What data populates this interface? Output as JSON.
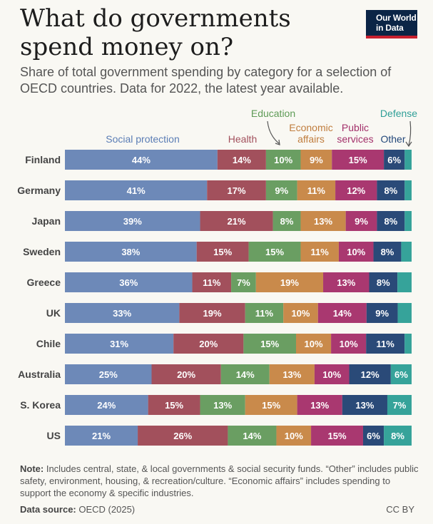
{
  "title": "What do governments spend money on?",
  "subtitle": "Share of total government spending by category for a selection of OECD countries. Data for 2022, the latest year available.",
  "logo": {
    "line1": "Our World",
    "line2": "in Data"
  },
  "note_label": "Note:",
  "note_text": "Includes central, state, & local governments & social security funds. “Other” includes public safety, environment, housing, & recreation/culture. “Economic affairs” includes spending to support the economy & specific industries.",
  "source_label": "Data source:",
  "source_text": "OECD (2025)",
  "license": "CC BY",
  "chart_data": {
    "type": "bar",
    "orientation": "horizontal",
    "stacked": true,
    "unit": "%",
    "categories": [
      "Finland",
      "Germany",
      "Japan",
      "Sweden",
      "Greece",
      "UK",
      "Chile",
      "Australia",
      "S. Korea",
      "US"
    ],
    "series": [
      {
        "name": "Social protection",
        "color": "#6d89b8",
        "text_color": "#5b7db5",
        "values": [
          44,
          41,
          39,
          38,
          36,
          33,
          31,
          25,
          24,
          21
        ]
      },
      {
        "name": "Health",
        "color": "#a2505c",
        "text_color": "#a2505c",
        "values": [
          14,
          17,
          21,
          15,
          11,
          19,
          20,
          20,
          15,
          26
        ]
      },
      {
        "name": "Education",
        "color": "#6a9e62",
        "text_color": "#5e9b56",
        "values": [
          10,
          9,
          8,
          15,
          7,
          11,
          15,
          14,
          13,
          14
        ]
      },
      {
        "name": "Economic affairs",
        "color": "#c98a4b",
        "text_color": "#c07d3e",
        "values": [
          9,
          11,
          13,
          11,
          19,
          10,
          10,
          13,
          15,
          10
        ]
      },
      {
        "name": "Public services",
        "color": "#a93870",
        "text_color": "#a3306a",
        "values": [
          15,
          12,
          9,
          10,
          13,
          14,
          10,
          10,
          13,
          15
        ]
      },
      {
        "name": "Other",
        "color": "#2a4a78",
        "text_color": "#23487a",
        "values": [
          6,
          8,
          8,
          8,
          8,
          9,
          11,
          12,
          13,
          6
        ]
      },
      {
        "name": "Defense",
        "color": "#36a39a",
        "text_color": "#2f9f97",
        "values": [
          2,
          2,
          2,
          3,
          4,
          4,
          2,
          6,
          7,
          8
        ]
      }
    ],
    "data_labels_shown_min": 6,
    "legend_placement": "top"
  }
}
